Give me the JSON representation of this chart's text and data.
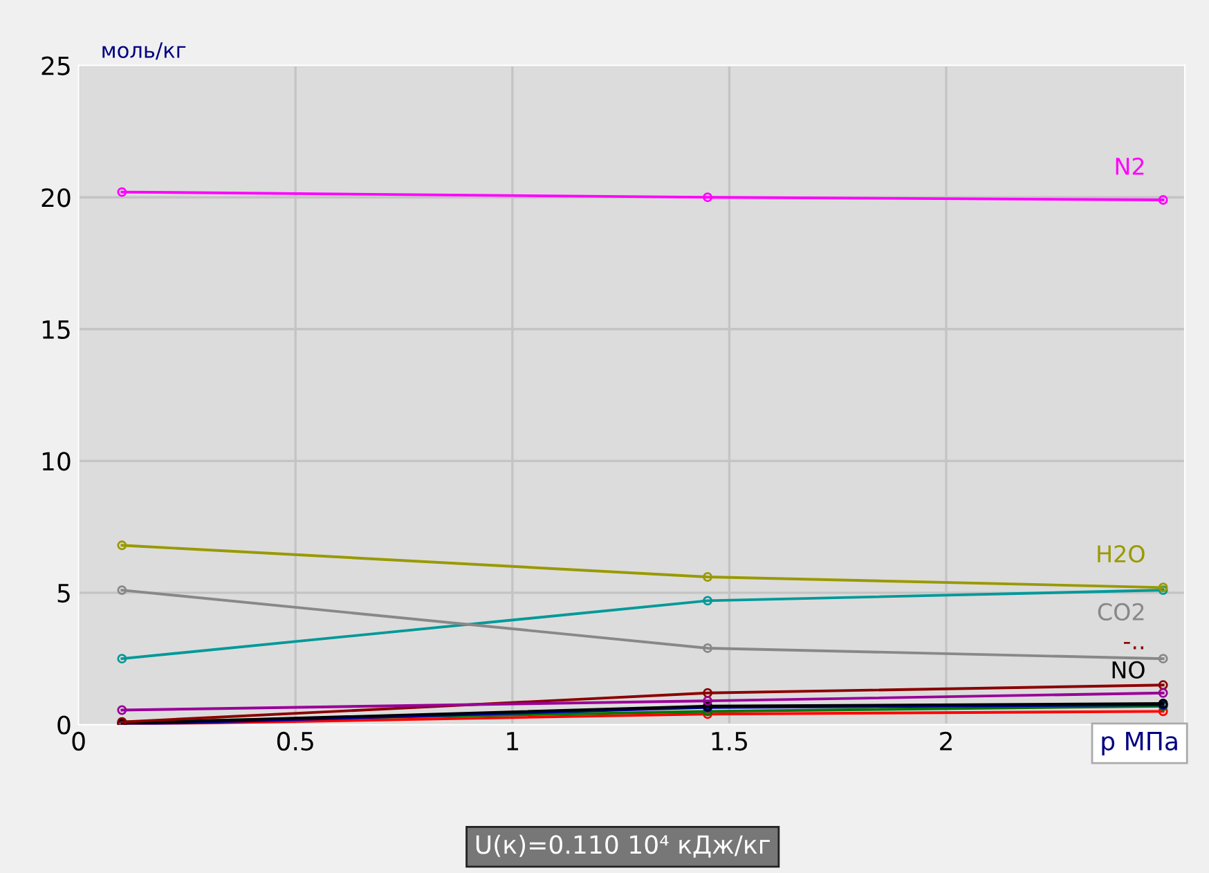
{
  "chart_data": {
    "type": "line",
    "ylabel": "моль/кг",
    "xlabel": "p МПа",
    "x": [
      0.1,
      1.45,
      2.5
    ],
    "series": [
      {
        "name": "N2",
        "color": "#ff00ff",
        "values": [
          20.2,
          20.0,
          19.9
        ]
      },
      {
        "name": "H2O",
        "color": "#999900",
        "values": [
          6.8,
          5.6,
          5.2
        ]
      },
      {
        "name": "CO2",
        "color": "#888888",
        "values": [
          5.1,
          2.9,
          2.5
        ]
      },
      {
        "color": "#009999",
        "values": [
          2.5,
          4.7,
          5.1
        ]
      },
      {
        "color": "#990099",
        "values": [
          0.55,
          0.9,
          1.2
        ]
      },
      {
        "name": "-..",
        "color": "#8b0000",
        "values": [
          0.1,
          1.2,
          1.5
        ]
      },
      {
        "name": "NO",
        "color": "#000000",
        "values": [
          0.05,
          0.7,
          0.8
        ]
      },
      {
        "color": "#000099",
        "values": [
          0.0,
          0.65,
          0.75
        ]
      },
      {
        "color": "#007700",
        "values": [
          0.1,
          0.5,
          0.7
        ]
      },
      {
        "color": "#ff0000",
        "values": [
          0.0,
          0.4,
          0.5
        ]
      }
    ],
    "xlim": [
      0,
      2.55
    ],
    "ylim": [
      0,
      25
    ],
    "xticks": [
      0,
      0.5,
      1,
      1.5,
      2
    ],
    "yticks": [
      0,
      5,
      10,
      15,
      20,
      25
    ],
    "grid": true,
    "marker": "circle",
    "line_style": "solid",
    "annotations": [
      "U(к)=0.110 10⁴ кДж/кг"
    ]
  }
}
